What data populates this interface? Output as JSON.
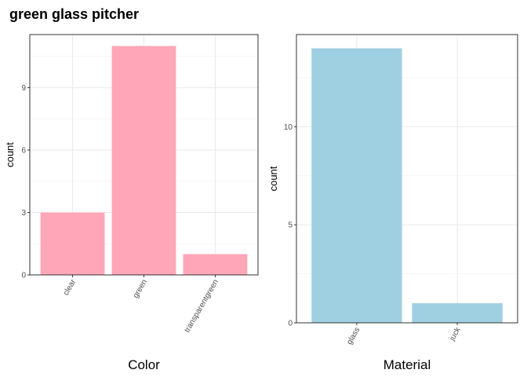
{
  "title": "green glass pitcher",
  "chart_data": [
    {
      "type": "bar",
      "categories": [
        "clear",
        "green",
        "transparentgreen"
      ],
      "values": [
        3,
        11,
        1
      ],
      "xlabel": "Color",
      "ylabel": "count",
      "yticks": [
        0,
        3,
        6,
        9
      ],
      "ylim": [
        0,
        11.55
      ],
      "grid": true,
      "color": "#FFA6B9"
    },
    {
      "type": "bar",
      "categories": [
        "glass",
        "juck"
      ],
      "values": [
        14,
        1
      ],
      "xlabel": "Material",
      "ylabel": "count",
      "yticks": [
        0,
        5,
        10
      ],
      "ylim": [
        0,
        14.7
      ],
      "grid": true,
      "color": "#9FD0E1"
    }
  ]
}
